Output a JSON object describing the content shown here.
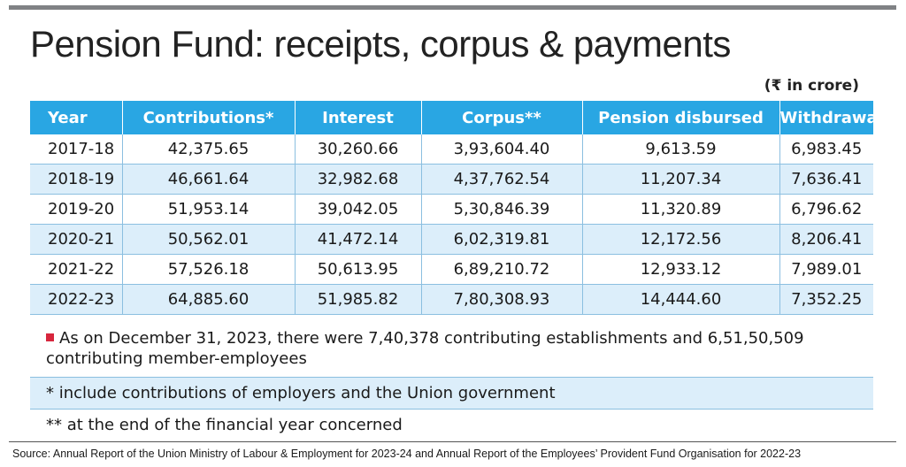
{
  "title": "Pension Fund: receipts, corpus & payments",
  "unit_note": "(₹ in crore)",
  "chart_data": {
    "type": "table",
    "title": "Pension Fund: receipts, corpus & payments",
    "columns": [
      "Year",
      "Contributions*",
      "Interest",
      "Corpus**",
      "Pension disbursed",
      "Withdrawal"
    ],
    "rows": [
      [
        "2017-18",
        "42,375.65",
        "30,260.66",
        "3,93,604.40",
        "9,613.59",
        "6,983.45"
      ],
      [
        "2018-19",
        "46,661.64",
        "32,982.68",
        "4,37,762.54",
        "11,207.34",
        "7,636.41"
      ],
      [
        "2019-20",
        "51,953.14",
        "39,042.05",
        "5,30,846.39",
        "11,320.89",
        "6,796.62"
      ],
      [
        "2020-21",
        "50,562.01",
        "41,472.14",
        "6,02,319.81",
        "12,172.56",
        "8,206.41"
      ],
      [
        "2021-22",
        "57,526.18",
        "50,613.95",
        "6,89,210.72",
        "12,933.12",
        "7,989.01"
      ],
      [
        "2022-23",
        "64,885.60",
        "51,985.82",
        "7,80,308.93",
        "14,444.60",
        "7,352.25"
      ]
    ]
  },
  "notes": [
    "As on December 31, 2023, there were 7,40,378 contributing establishments and 6,51,50,509 contributing  member-employees",
    "* include contributions of employers  and the Union government",
    "** at the end of the financial year concerned"
  ],
  "source": "Source: Annual Report of the Union Ministry of Labour & Employment for 2023-24 and Annual Report of the Employees’ Provident Fund Organisation for 2022-23",
  "colors": {
    "header": "#29a6e3",
    "alt_row": "#dceefa",
    "bullet": "#d7263d",
    "top_bar": "#808285"
  }
}
